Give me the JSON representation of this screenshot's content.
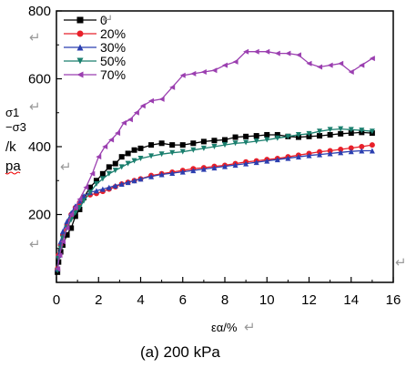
{
  "chart_data": {
    "type": "line",
    "title": "",
    "xlabel": "εα/%",
    "ylabel": [
      "σ1",
      "−σ3",
      "/k",
      "pa"
    ],
    "xlim": [
      0,
      16
    ],
    "ylim": [
      0,
      800
    ],
    "xticks": [
      "0",
      "2",
      "4",
      "6",
      "8",
      "10",
      "12",
      "14",
      "16"
    ],
    "yticks": [
      "200",
      "400",
      "600",
      "800"
    ],
    "grid": false,
    "legend_position": "top-left",
    "caption": "(a)  200  kPa",
    "series": [
      {
        "name": "0",
        "color": "#000000",
        "marker": "square",
        "x": [
          0.05,
          0.1,
          0.2,
          0.3,
          0.5,
          0.7,
          0.9,
          1.1,
          1.3,
          1.6,
          1.9,
          2.2,
          2.5,
          2.8,
          3.1,
          3.4,
          3.7,
          4.0,
          4.5,
          5.0,
          5.5,
          6.0,
          6.5,
          7.0,
          7.5,
          8.0,
          8.5,
          9.0,
          9.5,
          10.0,
          10.5,
          11.0,
          11.5,
          12.0,
          12.5,
          13.0,
          13.5,
          14.0,
          14.5,
          15.0
        ],
        "y": [
          30,
          60,
          90,
          110,
          140,
          160,
          195,
          215,
          250,
          280,
          300,
          320,
          340,
          350,
          370,
          380,
          390,
          395,
          405,
          410,
          405,
          405,
          410,
          415,
          418,
          420,
          428,
          430,
          432,
          435,
          435,
          430,
          428,
          430,
          432,
          435,
          438,
          440,
          442,
          440
        ]
      },
      {
        "name": "20%",
        "color": "#e8202a",
        "marker": "circle",
        "x": [
          0.05,
          0.1,
          0.2,
          0.3,
          0.5,
          0.7,
          0.9,
          1.1,
          1.3,
          1.6,
          1.9,
          2.2,
          2.5,
          2.8,
          3.1,
          3.4,
          3.7,
          4.0,
          4.5,
          5.0,
          5.5,
          6.0,
          6.5,
          7.0,
          7.5,
          8.0,
          8.5,
          9.0,
          9.5,
          10.0,
          10.5,
          11.0,
          11.5,
          12.0,
          12.5,
          13.0,
          13.5,
          14.0,
          14.5,
          15.0
        ],
        "y": [
          40,
          80,
          110,
          140,
          170,
          200,
          220,
          235,
          250,
          258,
          262,
          268,
          275,
          282,
          290,
          295,
          300,
          305,
          315,
          320,
          325,
          330,
          335,
          338,
          342,
          345,
          350,
          355,
          358,
          362,
          365,
          370,
          375,
          380,
          385,
          388,
          392,
          396,
          400,
          405
        ]
      },
      {
        "name": "30%",
        "color": "#2b3fb0",
        "marker": "triangle-up",
        "x": [
          0.05,
          0.1,
          0.2,
          0.3,
          0.5,
          0.7,
          0.9,
          1.1,
          1.3,
          1.6,
          1.9,
          2.2,
          2.5,
          2.8,
          3.1,
          3.4,
          3.7,
          4.0,
          4.5,
          5.0,
          5.5,
          6.0,
          6.5,
          7.0,
          7.5,
          8.0,
          8.5,
          9.0,
          9.5,
          10.0,
          10.5,
          11.0,
          11.5,
          12.0,
          12.5,
          13.0,
          13.5,
          14.0,
          14.5,
          15.0
        ],
        "y": [
          40,
          80,
          120,
          150,
          180,
          205,
          225,
          240,
          255,
          265,
          270,
          275,
          280,
          285,
          290,
          295,
          300,
          305,
          312,
          318,
          322,
          326,
          330,
          334,
          338,
          342,
          346,
          350,
          354,
          358,
          362,
          366,
          370,
          374,
          377,
          380,
          383,
          386,
          388,
          388
        ]
      },
      {
        "name": "50%",
        "color": "#1a7f6e",
        "marker": "triangle-down",
        "x": [
          0.05,
          0.1,
          0.2,
          0.3,
          0.5,
          0.7,
          0.9,
          1.1,
          1.3,
          1.6,
          1.9,
          2.2,
          2.5,
          2.8,
          3.1,
          3.4,
          3.7,
          4.0,
          4.5,
          5.0,
          5.5,
          6.0,
          6.5,
          7.0,
          7.5,
          8.0,
          8.5,
          9.0,
          9.5,
          10.0,
          10.5,
          11.0,
          11.5,
          12.0,
          12.5,
          13.0,
          13.5,
          14.0,
          14.5,
          15.0
        ],
        "y": [
          35,
          70,
          100,
          130,
          160,
          185,
          205,
          220,
          240,
          265,
          290,
          305,
          320,
          330,
          340,
          350,
          358,
          365,
          372,
          378,
          382,
          385,
          390,
          395,
          400,
          405,
          410,
          412,
          416,
          420,
          425,
          430,
          435,
          438,
          445,
          450,
          452,
          450,
          448,
          445
        ]
      },
      {
        "name": "70%",
        "color": "#9b3fb0",
        "marker": "triangle-left",
        "x": [
          0.05,
          0.15,
          0.3,
          0.5,
          0.7,
          0.9,
          1.1,
          1.4,
          1.7,
          2.0,
          2.3,
          2.6,
          2.9,
          3.2,
          3.5,
          3.8,
          4.1,
          4.5,
          5.0,
          5.5,
          6.0,
          6.5,
          7.0,
          7.5,
          8.0,
          8.5,
          9.0,
          9.5,
          10.0,
          10.5,
          11.0,
          11.5,
          12.0,
          12.5,
          13.0,
          13.5,
          14.0,
          14.5,
          15.0
        ],
        "y": [
          40,
          80,
          120,
          160,
          200,
          220,
          245,
          280,
          320,
          370,
          400,
          420,
          440,
          470,
          480,
          500,
          520,
          535,
          540,
          575,
          610,
          615,
          620,
          625,
          640,
          650,
          680,
          680,
          680,
          675,
          675,
          670,
          645,
          635,
          640,
          645,
          620,
          640,
          660
        ]
      }
    ]
  }
}
